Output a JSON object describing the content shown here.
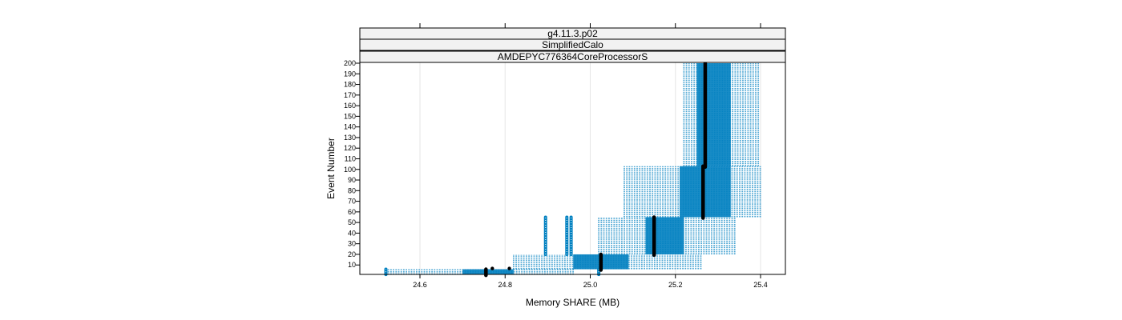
{
  "colors": {
    "points": "#0080c0",
    "median": "#000000",
    "strip_fill": "#f2f2f2",
    "grid": "#e6e6e6",
    "frame": "#000000"
  },
  "chart_data": {
    "type": "scatter",
    "title": "",
    "strips": [
      "g4.11.3.p02",
      "SimplifiedCalo",
      "AMDEPYC776364CoreProcessorS"
    ],
    "xlabel": "Memory SHARE (MB)",
    "ylabel": "Event Number",
    "xlim": [
      24.45,
      25.45
    ],
    "ylim": [
      0,
      200
    ],
    "x_ticks": [
      24.6,
      24.8,
      25.0,
      25.2,
      25.4
    ],
    "x_tick_labels": [
      "24.6",
      "24.8",
      "25.0",
      "25.2",
      "25.4"
    ],
    "y_ticks": [
      10,
      20,
      30,
      40,
      50,
      60,
      70,
      80,
      90,
      100,
      110,
      120,
      130,
      140,
      150,
      160,
      170,
      180,
      190,
      200
    ],
    "y_tick_labels": [
      "10",
      "20",
      "30",
      "40",
      "50",
      "60",
      "70",
      "80",
      "90",
      "100",
      "110",
      "120",
      "130",
      "140",
      "150",
      "160",
      "170",
      "180",
      "190",
      "200"
    ],
    "grid": true,
    "series": [
      {
        "events": [
          1,
          6
        ],
        "range": [
          24.52,
          24.96
        ],
        "dense": [
          24.7,
          24.82
        ],
        "medians": [
          24.755,
          24.77,
          24.81
        ]
      },
      {
        "events": [
          6,
          20
        ],
        "range": [
          24.82,
          25.26
        ],
        "dense": [
          24.96,
          25.09
        ],
        "medians": [
          25.025
        ]
      },
      {
        "events": [
          20,
          55
        ],
        "range": [
          25.02,
          25.34
        ],
        "dense": [
          25.13,
          25.22
        ],
        "medians": [
          25.15
        ]
      },
      {
        "events": [
          55,
          103
        ],
        "range": [
          25.08,
          25.4
        ],
        "dense": [
          25.21,
          25.33
        ],
        "medians": [
          25.265
        ]
      },
      {
        "events": [
          103,
          200
        ],
        "range": [
          25.22,
          25.4
        ],
        "dense": [
          25.25,
          25.33
        ],
        "medians": [
          25.27
        ]
      }
    ],
    "outlier_columns": [
      {
        "x": 24.52,
        "events": [
          1,
          6
        ]
      },
      {
        "x": 24.895,
        "events": [
          20,
          55
        ]
      },
      {
        "x": 24.945,
        "events": [
          20,
          55
        ]
      },
      {
        "x": 24.955,
        "events": [
          20,
          55
        ]
      },
      {
        "x": 25.02,
        "events": [
          1,
          6
        ]
      }
    ]
  }
}
